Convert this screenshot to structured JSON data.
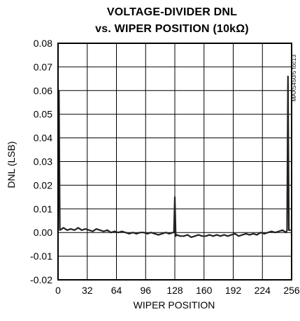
{
  "chart_data": {
    "type": "line",
    "title": "VOLTAGE-DIVIDER DNL",
    "subtitle": "vs. WIPER POSITION (10kΩ)",
    "xlabel": "WIPER POSITION",
    "ylabel": "DNL (LSB)",
    "xlim": [
      0,
      256
    ],
    "ylim": [
      -0.02,
      0.08
    ],
    "xticks": [
      0,
      32,
      64,
      96,
      128,
      160,
      192,
      224,
      256
    ],
    "xtick_labels": [
      "0",
      "32",
      "64",
      "96",
      "128",
      "160",
      "192",
      "224",
      "256"
    ],
    "yticks": [
      -0.02,
      -0.01,
      0.0,
      0.01,
      0.02,
      0.03,
      0.04,
      0.05,
      0.06,
      0.07,
      0.08
    ],
    "ytick_labels": [
      "-0.02",
      "-0.01",
      "0.00",
      "0.01",
      "0.02",
      "0.03",
      "0.04",
      "0.05",
      "0.06",
      "0.07",
      "0.08"
    ],
    "grid": true,
    "annotation": "MAX5450/5 toc13",
    "series": [
      {
        "color": "#222222",
        "x": [
          0,
          1,
          2,
          6,
          10,
          14,
          18,
          22,
          26,
          30,
          34,
          38,
          42,
          46,
          50,
          54,
          58,
          62,
          66,
          70,
          74,
          78,
          82,
          86,
          90,
          94,
          98,
          102,
          106,
          110,
          114,
          118,
          122,
          126,
          127,
          128,
          129,
          130,
          134,
          138,
          142,
          146,
          150,
          154,
          158,
          162,
          166,
          170,
          174,
          178,
          182,
          186,
          190,
          194,
          198,
          202,
          206,
          210,
          214,
          218,
          222,
          226,
          230,
          234,
          238,
          242,
          246,
          250,
          251,
          252,
          253,
          255
        ],
        "y": [
          0.001,
          0.06,
          0.001,
          0.002,
          0.001,
          0.0015,
          0.001,
          0.002,
          0.001,
          0.0015,
          0.001,
          0.0005,
          0.0015,
          0.001,
          0.0005,
          0.001,
          0.0,
          0.0005,
          0.0,
          0.0005,
          0.0,
          -0.0005,
          0.0,
          -0.0005,
          0.0,
          0.0,
          -0.0005,
          0.0,
          -0.0005,
          -0.001,
          -0.0005,
          0.0,
          -0.0005,
          0.0,
          0.0,
          0.015,
          -0.0015,
          -0.001,
          -0.0015,
          -0.0015,
          -0.001,
          -0.002,
          -0.0015,
          -0.001,
          -0.0015,
          -0.0015,
          -0.001,
          -0.0015,
          -0.001,
          -0.0015,
          -0.001,
          -0.0015,
          -0.001,
          -0.0005,
          -0.0015,
          -0.001,
          -0.0005,
          -0.001,
          -0.0005,
          -0.001,
          0.0,
          -0.0005,
          0.0,
          0.0005,
          0.0,
          0.0005,
          0.001,
          0.0,
          0.001,
          0.066,
          0.001,
          0.001
        ]
      }
    ]
  }
}
